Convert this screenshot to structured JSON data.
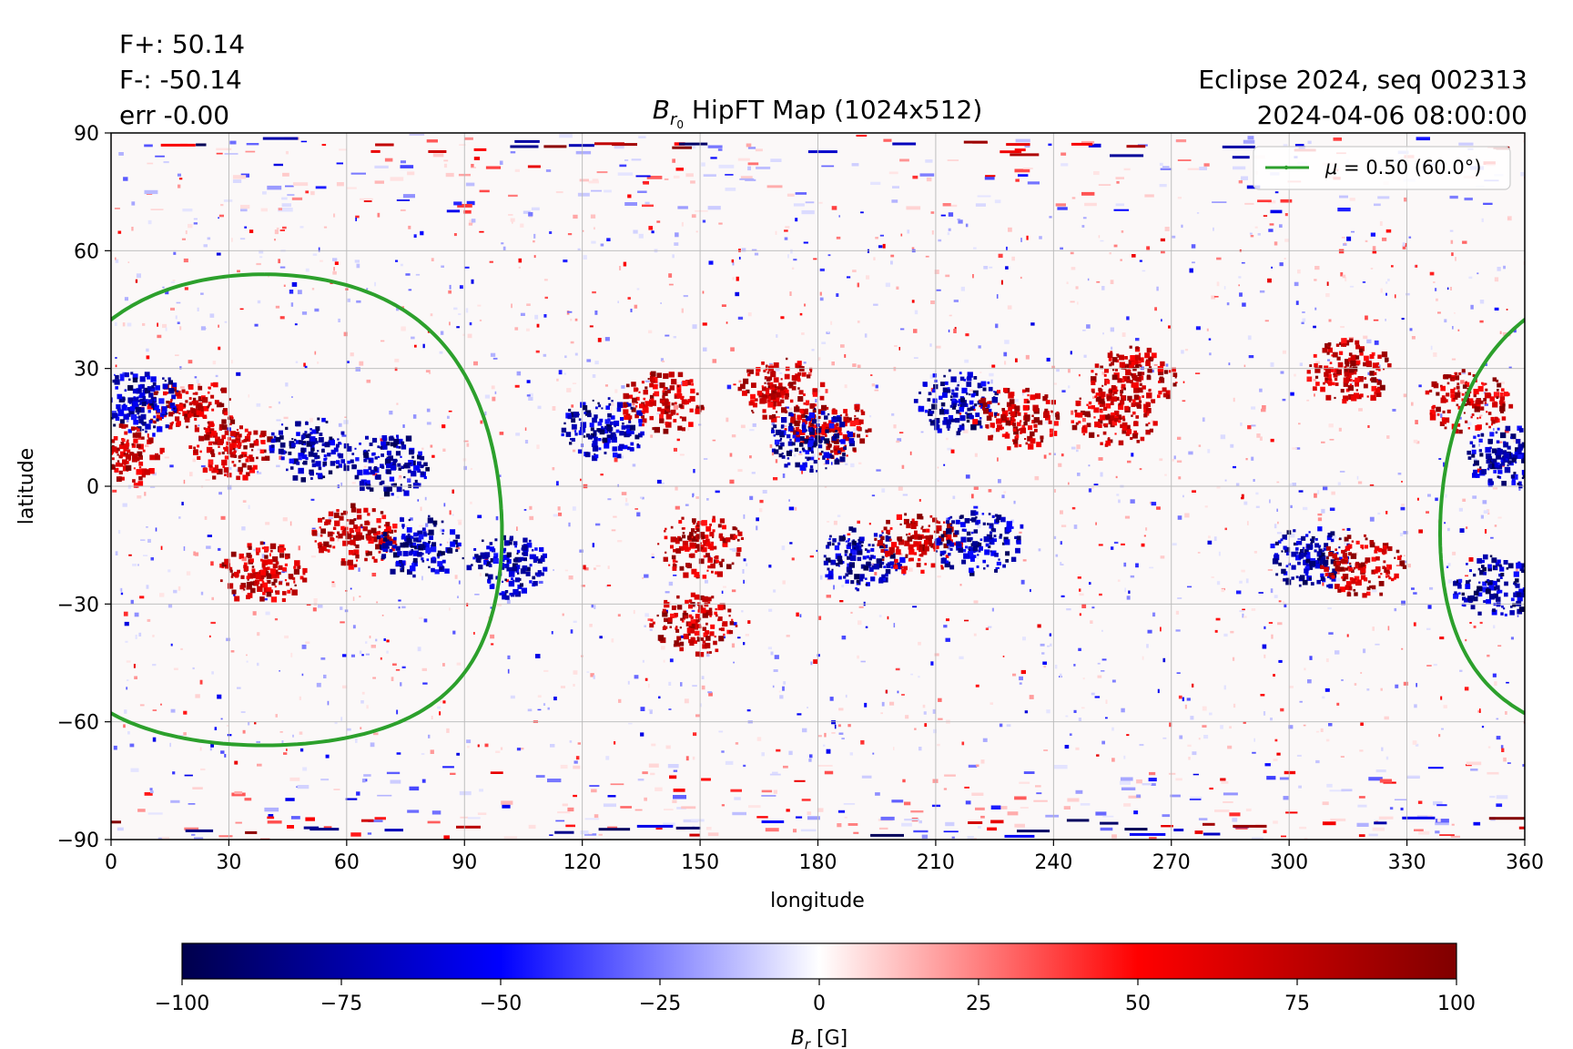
{
  "header": {
    "flux_pos": "F+: 50.14",
    "flux_neg": "F-: -50.14",
    "err": "err -0.00",
    "title_symbol": "B",
    "title_sub": "r",
    "title_sub2": "0",
    "title_rest": " HipFT Map (1024x512)",
    "right_line1": "Eclipse 2024, seq 002313",
    "right_line2": "2024-04-06 08:00:00"
  },
  "chart_data": {
    "type": "heatmap",
    "xlabel": "longitude",
    "ylabel": "latitude",
    "xlim": [
      0,
      360
    ],
    "ylim": [
      -90,
      90
    ],
    "x_ticks": [
      "0",
      "30",
      "60",
      "90",
      "120",
      "150",
      "180",
      "210",
      "240",
      "270",
      "300",
      "330",
      "360"
    ],
    "y_ticks": [
      "90",
      "60",
      "30",
      "0",
      "−30",
      "−60",
      "−90"
    ],
    "grid": true,
    "colormap": "seismic",
    "colorbar": {
      "range": [
        -100,
        100
      ],
      "ticks": [
        "−100",
        "−75",
        "−50",
        "−25",
        "0",
        "25",
        "50",
        "75",
        "100"
      ],
      "label_symbol": "B",
      "label_sub": "r",
      "label_unit": " [G]"
    },
    "legend": {
      "placement": "top-right",
      "label_mu": "μ",
      "label_rest": " = 0.50 (60.0°)",
      "color": "#2ca02c"
    },
    "contours": [
      {
        "name": "mu=0.50",
        "color": "#2ca02c",
        "center_lon": 39,
        "center_lat": -6,
        "angle_deg": 60
      }
    ],
    "active_regions": [
      {
        "lon": 20,
        "lat": 20,
        "sign": 1
      },
      {
        "lon": 7,
        "lat": 22,
        "sign": -1
      },
      {
        "lon": 30,
        "lat": 10,
        "sign": 1
      },
      {
        "lon": 50,
        "lat": 10,
        "sign": -1
      },
      {
        "lon": 70,
        "lat": 6,
        "sign": -1
      },
      {
        "lon": 38,
        "lat": -22,
        "sign": 1
      },
      {
        "lon": 62,
        "lat": -12,
        "sign": 1
      },
      {
        "lon": 78,
        "lat": -15,
        "sign": -1
      },
      {
        "lon": 100,
        "lat": -20,
        "sign": -1
      },
      {
        "lon": 140,
        "lat": 22,
        "sign": 1
      },
      {
        "lon": 125,
        "lat": 15,
        "sign": -1
      },
      {
        "lon": 170,
        "lat": 25,
        "sign": 1
      },
      {
        "lon": 182,
        "lat": 15,
        "sign": 1
      },
      {
        "lon": 178,
        "lat": 12,
        "sign": -1
      },
      {
        "lon": 215,
        "lat": 22,
        "sign": -1
      },
      {
        "lon": 230,
        "lat": 18,
        "sign": 1
      },
      {
        "lon": 150,
        "lat": -15,
        "sign": 1
      },
      {
        "lon": 148,
        "lat": -35,
        "sign": 1
      },
      {
        "lon": 190,
        "lat": -18,
        "sign": -1
      },
      {
        "lon": 205,
        "lat": -14,
        "sign": 1
      },
      {
        "lon": 220,
        "lat": -14,
        "sign": -1
      },
      {
        "lon": 305,
        "lat": -18,
        "sign": -1
      },
      {
        "lon": 318,
        "lat": -20,
        "sign": 1
      },
      {
        "lon": 315,
        "lat": 30,
        "sign": 1
      },
      {
        "lon": 345,
        "lat": 22,
        "sign": 1
      },
      {
        "lon": 355,
        "lat": 8,
        "sign": -1
      },
      {
        "lon": 352,
        "lat": -25,
        "sign": -1
      },
      {
        "lon": 2,
        "lat": 8,
        "sign": 1
      },
      {
        "lon": 260,
        "lat": 28,
        "sign": 1
      },
      {
        "lon": 255,
        "lat": 18,
        "sign": 1
      }
    ]
  }
}
